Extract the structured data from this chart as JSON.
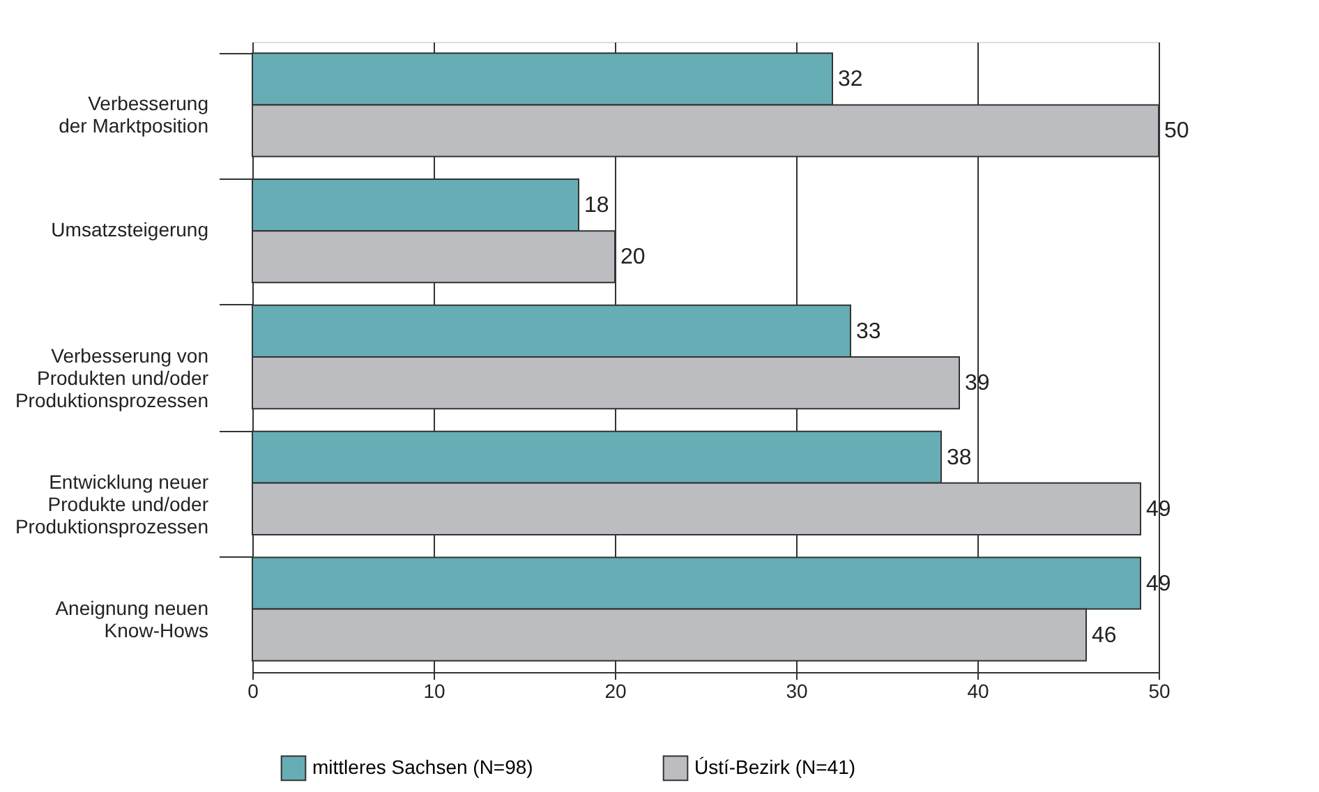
{
  "chart_data": {
    "type": "bar",
    "orientation": "horizontal",
    "categories": [
      "Verbesserung\nder Marktposition",
      "Umsatzsteigerung",
      "Verbesserung von\nProdukten und/oder\nProduktionsprozessen",
      "Entwicklung neuer\nProdukte und/oder\nProduktionsprozessen",
      "Aneignung neuen\nKnow-Hows"
    ],
    "series": [
      {
        "name": "mittleres Sachsen (N=98)",
        "color": "#66adb5",
        "values": [
          32,
          18,
          33,
          38,
          49
        ]
      },
      {
        "name": "Ústí-Bezirk (N=41)",
        "color": "#bcbdc1",
        "values": [
          50,
          20,
          39,
          49,
          46
        ]
      }
    ],
    "xlim": [
      0,
      50
    ],
    "xticks": [
      0,
      10,
      20,
      30,
      40,
      50
    ],
    "grid": "x",
    "legend": "bottom",
    "data_labels": true
  }
}
